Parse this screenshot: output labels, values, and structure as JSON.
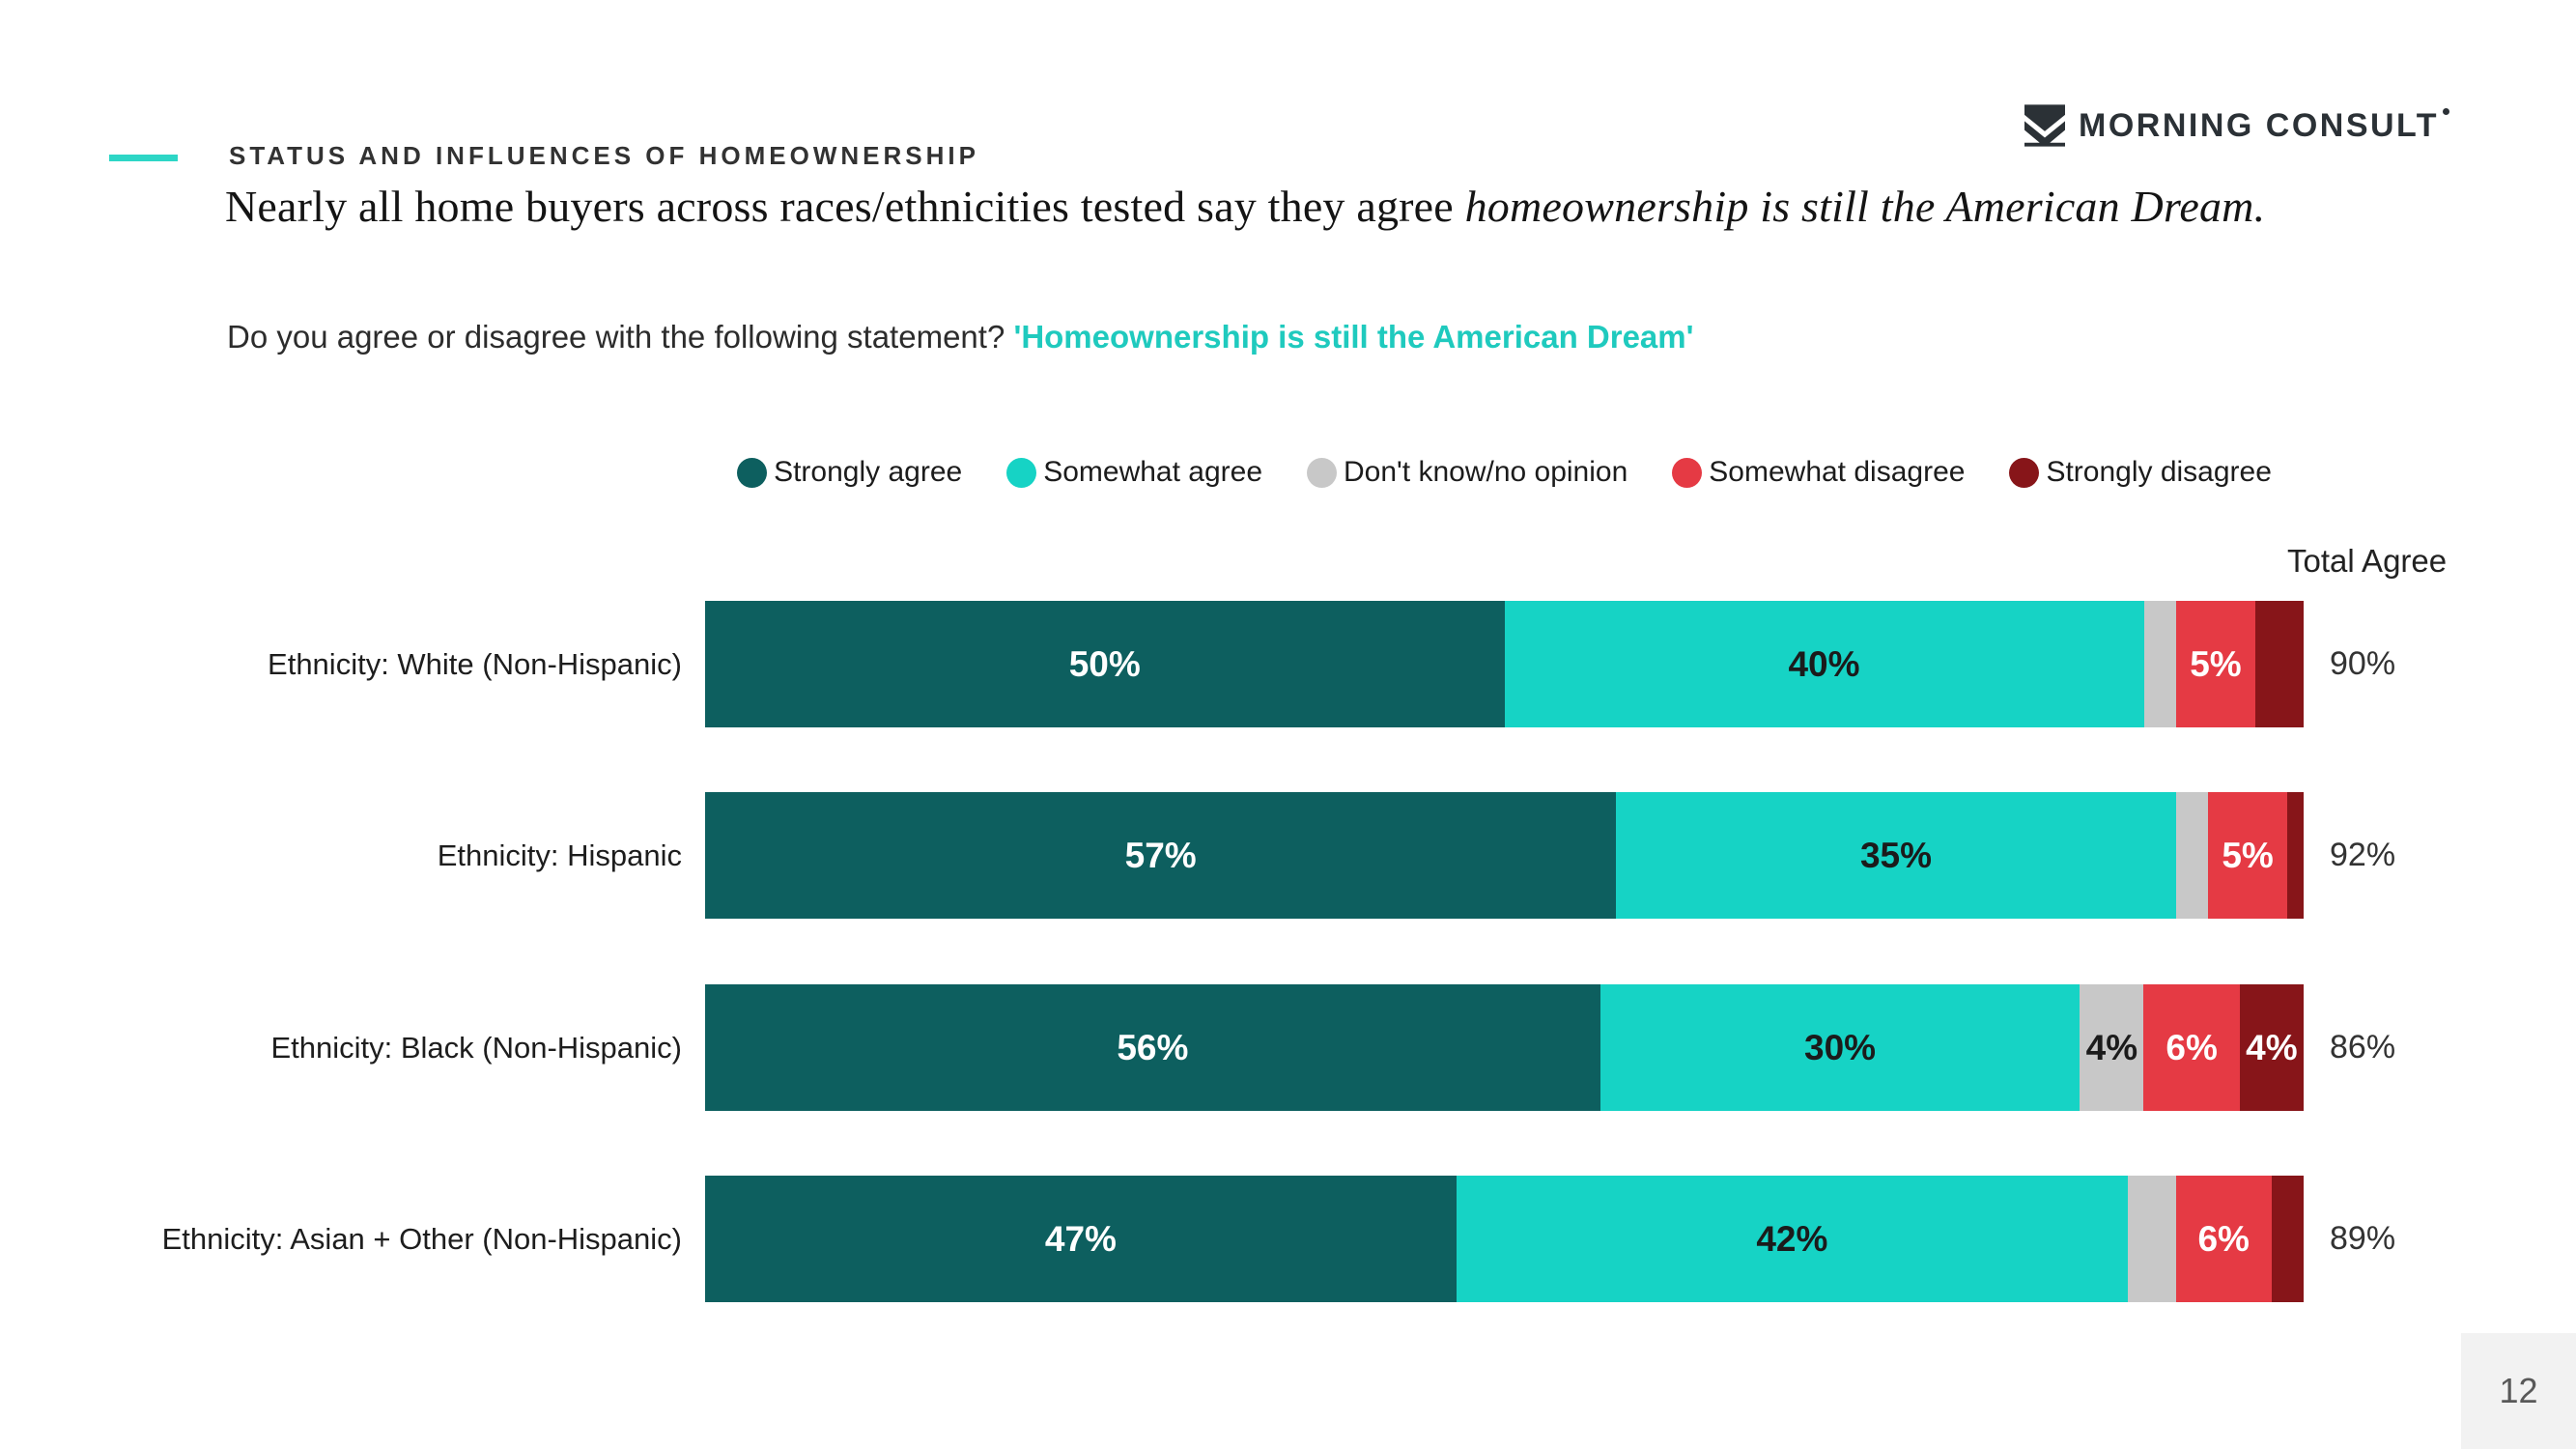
{
  "page": {
    "number": "12"
  },
  "brand": {
    "logo_text": "MORNING CONSULT"
  },
  "header": {
    "eyebrow": "STATUS AND INFLUENCES OF HOMEOWNERSHIP",
    "title_normal": "Nearly all home buyers across races/ethnicities tested say they agree ",
    "title_italic": "homeownership is still the American Dream.",
    "subtitle_prefix": "Do you agree or disagree with the following statement? ",
    "subtitle_highlight": "'Homeownership is still the American Dream'"
  },
  "colors": {
    "accent_teal": "#2dd6c6",
    "subtitle_highlight": "#1fcabe",
    "strongly_agree": "#0d5f5f",
    "somewhat_agree": "#16d3c5",
    "dont_know": "#c8c8c8",
    "somewhat_disagree": "#e53a44",
    "strongly_disagree": "#871519",
    "page_box_bg": "#f2f2f2"
  },
  "chart_data": {
    "type": "bar",
    "orientation": "horizontal-stacked",
    "title": "",
    "xlabel": "",
    "ylabel": "",
    "xlim": [
      0,
      100
    ],
    "grid": false,
    "legend_position": "top-center",
    "total_label": "Total Agree",
    "legend": [
      {
        "name": "Strongly agree",
        "color": "#0d5f5f",
        "label_text_color": "#ffffff"
      },
      {
        "name": "Somewhat agree",
        "color": "#16d3c5",
        "label_text_color": "#1b1b1b"
      },
      {
        "name": "Don't know/no opinion",
        "color": "#c8c8c8",
        "label_text_color": "#1b1b1b"
      },
      {
        "name": "Somewhat disagree",
        "color": "#e53a44",
        "label_text_color": "#ffffff"
      },
      {
        "name": "Strongly disagree",
        "color": "#871519",
        "label_text_color": "#ffffff"
      }
    ],
    "categories": [
      "Ethnicity: White (Non-Hispanic)",
      "Ethnicity: Hispanic",
      "Ethnicity: Black (Non-Hispanic)",
      "Ethnicity: Asian + Other (Non-Hispanic)"
    ],
    "series": [
      {
        "name": "Strongly agree",
        "values": [
          50,
          57,
          56,
          47
        ]
      },
      {
        "name": "Somewhat agree",
        "values": [
          40,
          35,
          30,
          42
        ]
      },
      {
        "name": "Don't know/no opinion",
        "values": [
          2,
          2,
          4,
          3
        ]
      },
      {
        "name": "Somewhat disagree",
        "values": [
          5,
          5,
          6,
          6
        ]
      },
      {
        "name": "Strongly disagree",
        "values": [
          3,
          1,
          4,
          2
        ]
      }
    ],
    "data_label_suffix": "%",
    "totals": [
      "90%",
      "92%",
      "86%",
      "89%"
    ]
  }
}
